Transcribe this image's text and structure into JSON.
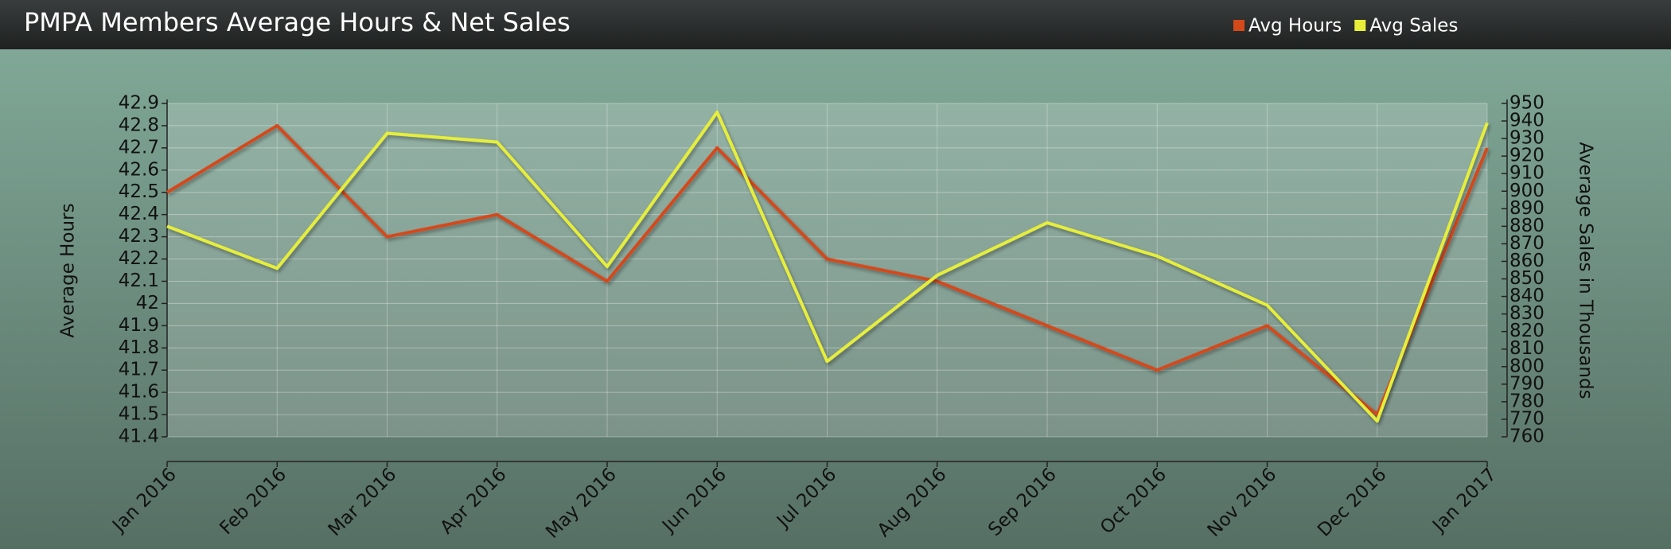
{
  "chart_data": {
    "type": "line",
    "title": "PMPA Members Average Hours & Net Sales",
    "ylabel": "Average Hours",
    "y2label": "Average Sales in Thousands",
    "categories": [
      "Jan 2016",
      "Feb 2016",
      "Mar 2016",
      "Apr 2016",
      "May 2016",
      "Jun 2016",
      "Jul 2016",
      "Aug 2016",
      "Sep 2016",
      "Oct 2016",
      "Nov 2016",
      "Dec 2016",
      "Jan 2017"
    ],
    "series": [
      {
        "name": "Avg Hours",
        "color": "#d4491a",
        "axis": "y",
        "values": [
          42.5,
          42.8,
          42.3,
          42.4,
          42.1,
          42.7,
          42.2,
          42.1,
          41.9,
          41.7,
          41.9,
          41.5,
          42.7
        ]
      },
      {
        "name": "Avg Sales",
        "color": "#e6ee3a",
        "axis": "y2",
        "values": [
          880,
          856,
          933,
          928,
          857,
          945,
          803,
          852,
          882,
          863,
          835,
          769,
          939
        ]
      }
    ],
    "ylim": [
      41.4,
      42.9
    ],
    "yticks": [
      41.4,
      41.5,
      41.6,
      41.7,
      41.8,
      41.9,
      42,
      42.1,
      42.2,
      42.3,
      42.4,
      42.5,
      42.6,
      42.7,
      42.8,
      42.9
    ],
    "y2lim": [
      760,
      950
    ],
    "y2ticks": [
      760,
      770,
      780,
      790,
      800,
      810,
      820,
      830,
      840,
      850,
      860,
      870,
      880,
      890,
      900,
      910,
      920,
      930,
      940,
      950
    ],
    "grid": true,
    "legend": "top-right"
  }
}
